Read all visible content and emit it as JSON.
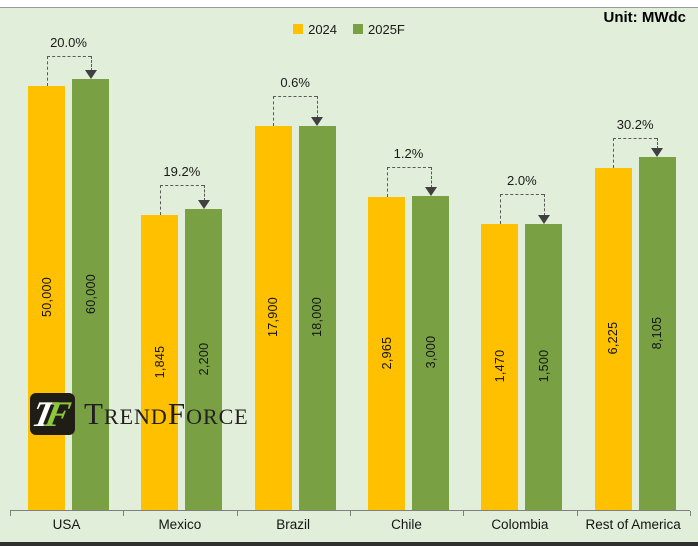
{
  "page": {
    "unit_label": "Unit: MWdc",
    "background_color": "#e1eed9"
  },
  "legend": {
    "items": [
      {
        "label": "2024",
        "color": "#ffc000"
      },
      {
        "label": "2025F",
        "color": "#79a144"
      }
    ]
  },
  "logo": {
    "text": "TrendForce",
    "icon_t": "T",
    "icon_f": "F"
  },
  "chart_data": {
    "type": "bar",
    "title": "",
    "unit": "MWdc",
    "scale": "log10",
    "categories": [
      "USA",
      "Mexico",
      "Brazil",
      "Chile",
      "Colombia",
      "Rest of America"
    ],
    "series": [
      {
        "name": "2024",
        "color": "#ffc000",
        "values": [
          50000,
          1845,
          17900,
          2965,
          1470,
          6225
        ],
        "value_labels": [
          "50,000",
          "1,845",
          "17,900",
          "2,965",
          "1,470",
          "6,225"
        ]
      },
      {
        "name": "2025F",
        "color": "#79a144",
        "values": [
          60000,
          2200,
          18000,
          3000,
          1500,
          8105
        ],
        "value_labels": [
          "60,000",
          "2,200",
          "18,000",
          "3,000",
          "1,500",
          "8,105"
        ]
      }
    ],
    "growth_labels": [
      "20.0%",
      "19.2%",
      "0.6%",
      "1.2%",
      "2.0%",
      "30.2%"
    ],
    "legend_position": "top-center",
    "grid": false,
    "axis_color": "#7f7f7f",
    "annotation_color": "#595959"
  }
}
